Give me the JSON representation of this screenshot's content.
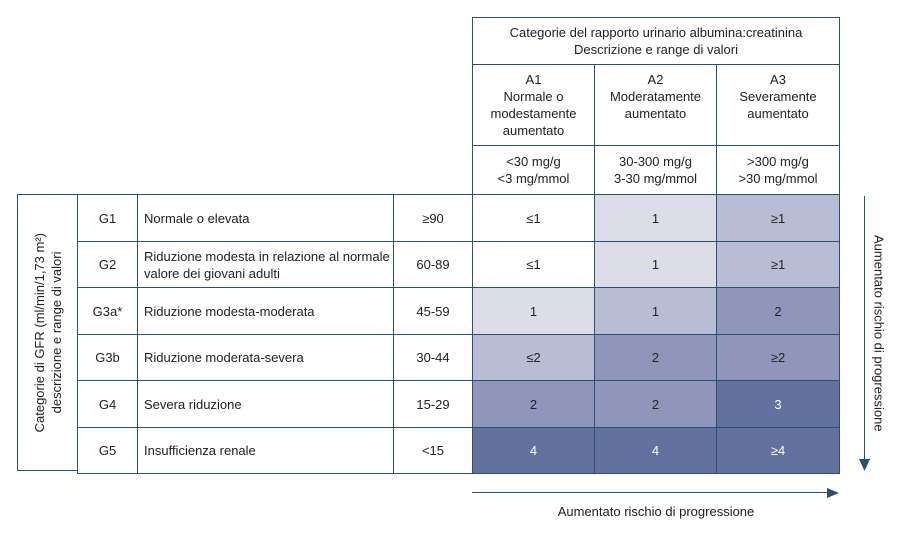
{
  "header": {
    "title_line1": "Categorie del rapporto urinario albumina:creatinina",
    "title_line2": "Descrizione e range di valori",
    "columns": [
      {
        "code": "A1",
        "desc": "Normale o modestamente aumentato",
        "range1": "<30 mg/g",
        "range2": "<3 mg/mmol"
      },
      {
        "code": "A2",
        "desc": "Moderatamente aumentato",
        "range1": "30-300 mg/g",
        "range2": "3-30 mg/mmol"
      },
      {
        "code": "A3",
        "desc": "Severamente aumentato",
        "range1": ">300 mg/g",
        "range2": ">30 mg/mmol"
      }
    ]
  },
  "side_label_line1": "Categorie di GFR (ml/min/1,73 m²)",
  "side_label_line2": "descrizione e range di valori",
  "rows": [
    {
      "code": "G1",
      "desc": "Normale o elevata",
      "range": "≥90",
      "values": [
        "≤1",
        "1",
        "≥1"
      ]
    },
    {
      "code": "G2",
      "desc": "Riduzione modesta in relazione al normale valore dei giovani adulti",
      "range": "60-89",
      "values": [
        "≤1",
        "1",
        "≥1"
      ]
    },
    {
      "code": "G3a*",
      "desc": "Riduzione modesta-moderata",
      "range": "45-59",
      "values": [
        "1",
        "1",
        "2"
      ]
    },
    {
      "code": "G3b",
      "desc": "Riduzione moderata-severa",
      "range": "30-44",
      "values": [
        "≤2",
        "2",
        "≥2"
      ]
    },
    {
      "code": "G4",
      "desc": "Severa riduzione",
      "range": "15-29",
      "values": [
        "2",
        "2",
        "3"
      ]
    },
    {
      "code": "G5",
      "desc": "Insufficienza renale",
      "range": "<15",
      "values": [
        "4",
        "4",
        "≥4"
      ]
    }
  ],
  "cell_colors": [
    [
      "#ffffff",
      "#dcdde9",
      "#b8bcd4"
    ],
    [
      "#ffffff",
      "#dcdde9",
      "#b8bcd4"
    ],
    [
      "#dcdde9",
      "#b8bcd4",
      "#9096bb"
    ],
    [
      "#b8bcd4",
      "#9096bb",
      "#9096bb"
    ],
    [
      "#9096bb",
      "#9096bb",
      "#63719f"
    ],
    [
      "#63719f",
      "#63719f",
      "#63719f"
    ]
  ],
  "arrow_right_label": "Aumentato rischio di progressione",
  "arrow_down_label": "Aumentato rischio di progressione"
}
